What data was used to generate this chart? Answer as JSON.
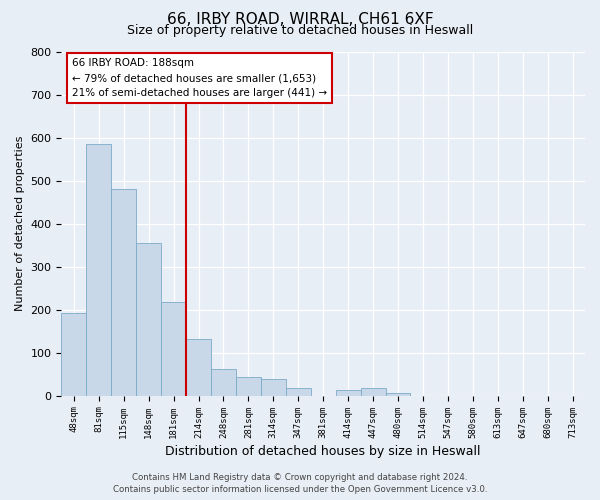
{
  "title": "66, IRBY ROAD, WIRRAL, CH61 6XF",
  "subtitle": "Size of property relative to detached houses in Heswall",
  "xlabel": "Distribution of detached houses by size in Heswall",
  "ylabel": "Number of detached properties",
  "bin_labels": [
    "48sqm",
    "81sqm",
    "115sqm",
    "148sqm",
    "181sqm",
    "214sqm",
    "248sqm",
    "281sqm",
    "314sqm",
    "347sqm",
    "381sqm",
    "414sqm",
    "447sqm",
    "480sqm",
    "514sqm",
    "547sqm",
    "580sqm",
    "613sqm",
    "647sqm",
    "680sqm",
    "713sqm"
  ],
  "bar_values": [
    193,
    585,
    480,
    355,
    218,
    132,
    62,
    43,
    38,
    17,
    0,
    12,
    18,
    7,
    0,
    0,
    0,
    0,
    0,
    0,
    0
  ],
  "bar_color": "#c8d8e8",
  "bar_edgecolor": "#7aaac8",
  "vline_color": "#cc0000",
  "annotation_box_edgecolor": "#cc0000",
  "ylim": [
    0,
    800
  ],
  "yticks": [
    0,
    100,
    200,
    300,
    400,
    500,
    600,
    700,
    800
  ],
  "property_label": "66 IRBY ROAD: 188sqm",
  "annotation_line1": "← 79% of detached houses are smaller (1,653)",
  "annotation_line2": "21% of semi-detached houses are larger (441) →",
  "footer_line1": "Contains HM Land Registry data © Crown copyright and database right 2024.",
  "footer_line2": "Contains public sector information licensed under the Open Government Licence v3.0.",
  "bg_color": "#e8eef5",
  "plot_bg_color": "#e8eef5",
  "vline_bin_index": 4
}
